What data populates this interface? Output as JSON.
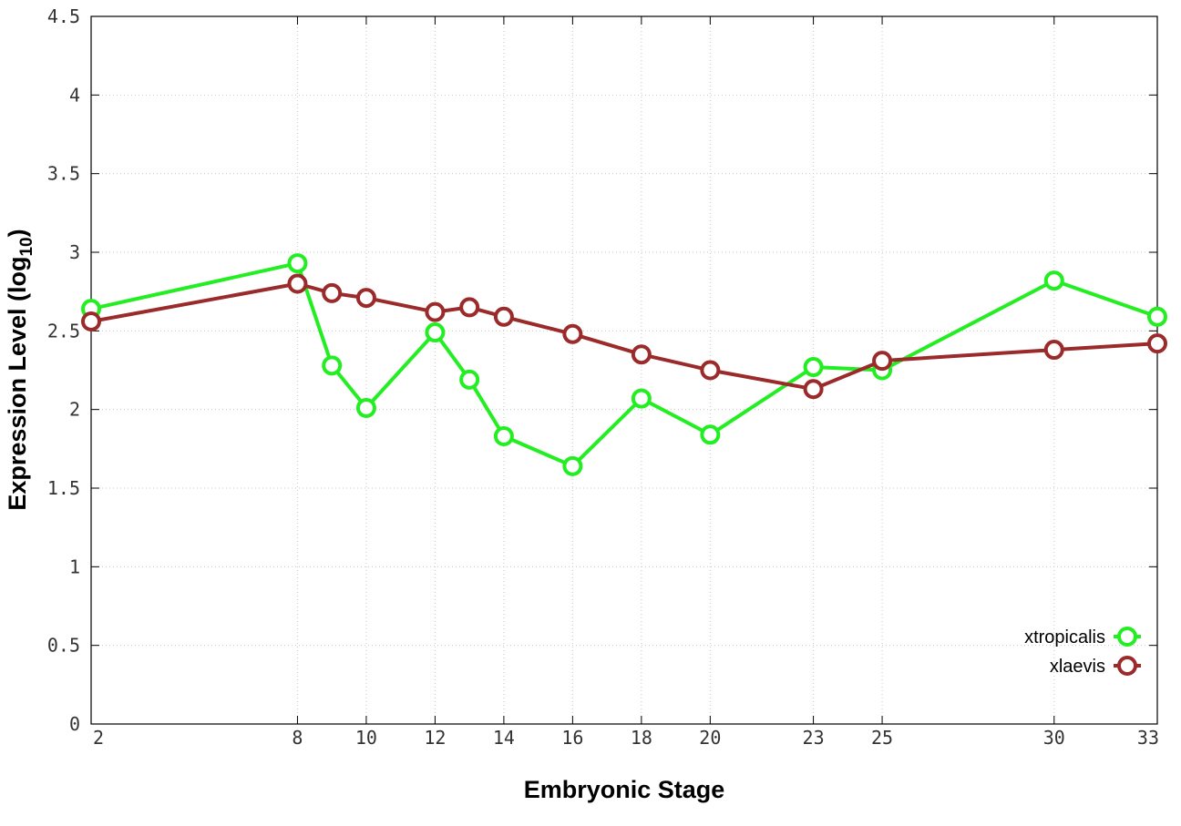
{
  "chart_data": {
    "type": "line",
    "xlabel": "Embryonic Stage",
    "ylabel": "Expression Level (log",
    "ylabel_subscript": "10",
    "ylabel_suffix": ")",
    "xlim": [
      2,
      33
    ],
    "ylim": [
      0,
      4.5
    ],
    "x_ticks": [
      2,
      8,
      10,
      12,
      14,
      16,
      18,
      20,
      23,
      25,
      30,
      33
    ],
    "y_ticks": [
      0,
      0.5,
      1,
      1.5,
      2,
      2.5,
      3,
      3.5,
      4,
      4.5
    ],
    "x_tick_labels": [
      "2",
      "8",
      "10",
      "12",
      "14",
      "16",
      "18",
      "20",
      "23",
      "25",
      "30",
      "33"
    ],
    "y_tick_labels": [
      "0",
      "0.5",
      "1",
      "1.5",
      "2",
      "2.5",
      "3",
      "3.5",
      "4",
      "4.5"
    ],
    "grid": true,
    "legend_position": "bottom-right",
    "series": [
      {
        "name": "xtropicalis",
        "color": "#22ee22",
        "x": [
          2,
          8,
          9,
          10,
          12,
          13,
          14,
          16,
          18,
          20,
          23,
          25,
          30,
          33
        ],
        "y": [
          2.64,
          2.93,
          2.28,
          2.01,
          2.49,
          2.19,
          1.83,
          1.64,
          2.07,
          1.84,
          2.27,
          2.25,
          2.82,
          2.59
        ]
      },
      {
        "name": "xlaevis",
        "color": "#9b2a2a",
        "x": [
          2,
          8,
          9,
          10,
          12,
          13,
          14,
          16,
          18,
          20,
          23,
          25,
          30,
          33
        ],
        "y": [
          2.56,
          2.8,
          2.74,
          2.71,
          2.62,
          2.65,
          2.59,
          2.48,
          2.35,
          2.25,
          2.13,
          2.31,
          2.38,
          2.42
        ]
      }
    ]
  }
}
